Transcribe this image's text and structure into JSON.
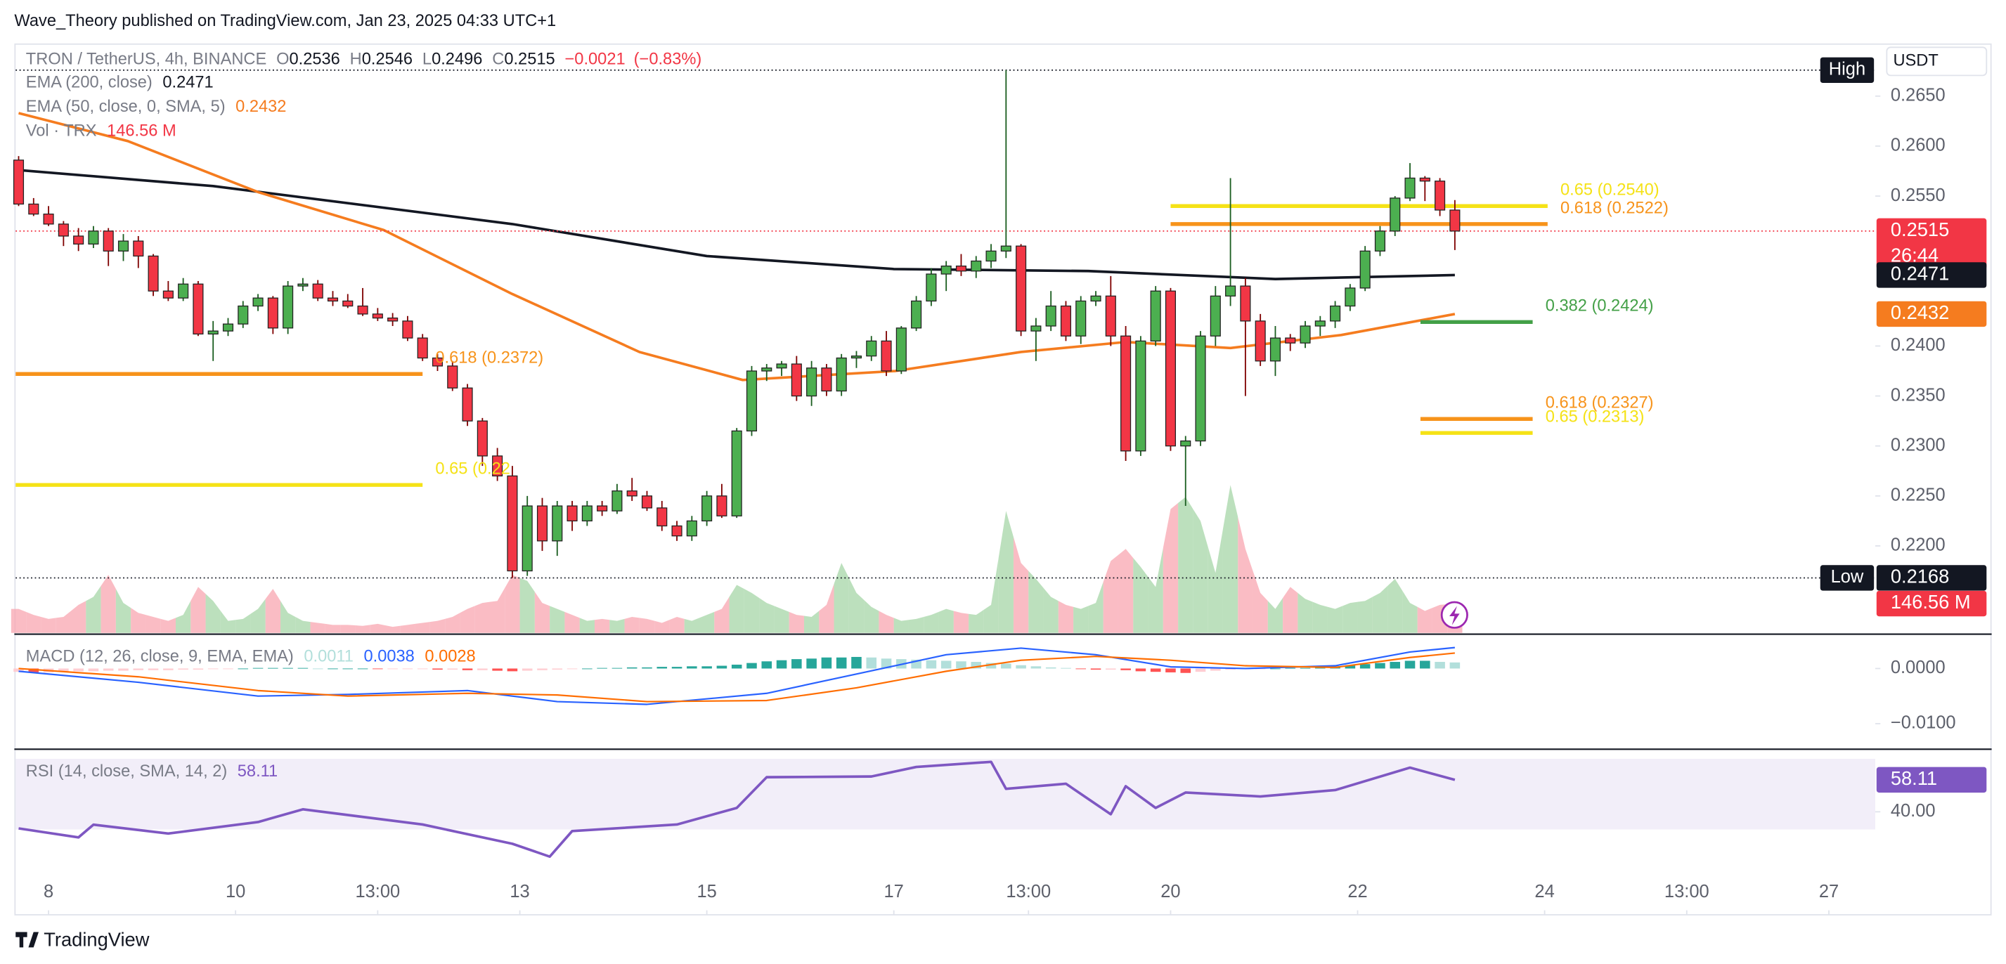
{
  "header": {
    "text": "Wave_Theory published on TradingView.com, Jan 23, 2025 04:33 UTC+1"
  },
  "footer": {
    "brand": "TradingView"
  },
  "chart_data": [
    {
      "type": "candlestick",
      "title": "TRON / TetherUS, 4h, BINANCE",
      "legend_keys": [
        "O",
        "H",
        "L",
        "C"
      ],
      "change": {
        "value": -0.0021,
        "label": "−0.0021"
      },
      "change_pct": {
        "value": -0.83,
        "label": "(−0.83%)"
      },
      "currency": "USDT",
      "countdown": "26:44",
      "up_color": "#4caf50",
      "down_color": "#f23645",
      "price_line_color": "#f23645",
      "open": [
        0.2586,
        0.2542,
        0.2532,
        0.2522,
        0.251,
        0.2502,
        0.2515,
        0.2495,
        0.2505,
        0.249,
        0.2455,
        0.2448,
        0.2462,
        0.2412,
        0.2415,
        0.2422,
        0.244,
        0.2448,
        0.2418,
        0.246,
        0.2462,
        0.2448,
        0.2445,
        0.244,
        0.2432,
        0.2428,
        0.2425,
        0.2408,
        0.2388,
        0.238,
        0.2358,
        0.2325,
        0.229,
        0.227,
        0.2175,
        0.224,
        0.2205,
        0.224,
        0.2225,
        0.224,
        0.2235,
        0.2255,
        0.225,
        0.2238,
        0.222,
        0.221,
        0.2225,
        0.225,
        0.223,
        0.2315,
        0.2375,
        0.2378,
        0.2382,
        0.235,
        0.2378,
        0.2355,
        0.2388,
        0.239,
        0.2405,
        0.2375,
        0.2418,
        0.2445,
        0.2472,
        0.248,
        0.2475,
        0.2485,
        0.2495,
        0.25,
        0.2415,
        0.242,
        0.244,
        0.241,
        0.2445,
        0.245,
        0.241,
        0.2295,
        0.2405,
        0.2455,
        0.23,
        0.2305,
        0.241,
        0.245,
        0.246,
        0.2425,
        0.2385,
        0.2408,
        0.2403,
        0.242,
        0.2425,
        0.244,
        0.2458,
        0.2495,
        0.2515,
        0.2548,
        0.2568,
        0.2565,
        0.2536
      ],
      "high": [
        0.259,
        0.2548,
        0.254,
        0.2525,
        0.2518,
        0.252,
        0.2518,
        0.2512,
        0.251,
        0.2492,
        0.2465,
        0.2468,
        0.2465,
        0.2425,
        0.2428,
        0.2445,
        0.2452,
        0.245,
        0.2465,
        0.2468,
        0.2466,
        0.2455,
        0.2452,
        0.2458,
        0.2438,
        0.2433,
        0.243,
        0.2412,
        0.2392,
        0.2385,
        0.2362,
        0.2328,
        0.2298,
        0.228,
        0.225,
        0.2248,
        0.2245,
        0.2245,
        0.2245,
        0.2245,
        0.2262,
        0.2268,
        0.2255,
        0.2245,
        0.2225,
        0.223,
        0.2255,
        0.2262,
        0.2318,
        0.238,
        0.2382,
        0.2385,
        0.239,
        0.2385,
        0.2382,
        0.2392,
        0.2395,
        0.241,
        0.2415,
        0.242,
        0.245,
        0.2478,
        0.2485,
        0.2492,
        0.249,
        0.2502,
        0.2676,
        0.2502,
        0.2428,
        0.2455,
        0.2445,
        0.245,
        0.2455,
        0.247,
        0.242,
        0.241,
        0.246,
        0.2458,
        0.231,
        0.2415,
        0.246,
        0.2568,
        0.2468,
        0.2432,
        0.242,
        0.2412,
        0.2425,
        0.243,
        0.2445,
        0.2462,
        0.25,
        0.252,
        0.255,
        0.2583,
        0.257,
        0.2568,
        0.2546
      ],
      "low": [
        0.254,
        0.253,
        0.252,
        0.25,
        0.2495,
        0.2498,
        0.248,
        0.2485,
        0.2478,
        0.245,
        0.2445,
        0.2445,
        0.241,
        0.2385,
        0.241,
        0.2418,
        0.2435,
        0.2412,
        0.2412,
        0.2455,
        0.2445,
        0.244,
        0.2438,
        0.243,
        0.2425,
        0.242,
        0.2405,
        0.2385,
        0.2375,
        0.2355,
        0.232,
        0.228,
        0.2265,
        0.2168,
        0.217,
        0.2195,
        0.219,
        0.2215,
        0.222,
        0.223,
        0.2232,
        0.2245,
        0.2235,
        0.2215,
        0.2205,
        0.2205,
        0.222,
        0.2228,
        0.2228,
        0.231,
        0.2365,
        0.237,
        0.2345,
        0.234,
        0.235,
        0.235,
        0.2378,
        0.2385,
        0.237,
        0.2372,
        0.2415,
        0.244,
        0.2455,
        0.247,
        0.2468,
        0.2478,
        0.2488,
        0.241,
        0.2385,
        0.2415,
        0.2405,
        0.2402,
        0.244,
        0.24,
        0.2285,
        0.229,
        0.24,
        0.2295,
        0.224,
        0.23,
        0.24,
        0.244,
        0.235,
        0.238,
        0.237,
        0.2395,
        0.2398,
        0.241,
        0.2418,
        0.2435,
        0.2455,
        0.249,
        0.251,
        0.2545,
        0.2545,
        0.253,
        0.2496
      ],
      "close": [
        0.2542,
        0.2532,
        0.2522,
        0.251,
        0.2502,
        0.2515,
        0.2495,
        0.2505,
        0.249,
        0.2455,
        0.2448,
        0.2462,
        0.2412,
        0.2415,
        0.2422,
        0.244,
        0.2448,
        0.2418,
        0.246,
        0.2462,
        0.2448,
        0.2445,
        0.244,
        0.2432,
        0.2428,
        0.2425,
        0.2408,
        0.2388,
        0.238,
        0.2358,
        0.2325,
        0.229,
        0.227,
        0.2175,
        0.224,
        0.2205,
        0.224,
        0.2225,
        0.224,
        0.2235,
        0.2255,
        0.225,
        0.2238,
        0.222,
        0.221,
        0.2225,
        0.225,
        0.223,
        0.2315,
        0.2375,
        0.2378,
        0.2382,
        0.235,
        0.2378,
        0.2355,
        0.2388,
        0.239,
        0.2405,
        0.2375,
        0.2418,
        0.2445,
        0.2472,
        0.248,
        0.2475,
        0.2485,
        0.2495,
        0.25,
        0.2415,
        0.242,
        0.244,
        0.241,
        0.2445,
        0.245,
        0.241,
        0.2295,
        0.2405,
        0.2455,
        0.23,
        0.2305,
        0.241,
        0.245,
        0.246,
        0.2425,
        0.2385,
        0.2408,
        0.2403,
        0.242,
        0.2425,
        0.244,
        0.2458,
        0.2495,
        0.2515,
        0.2548,
        0.2568,
        0.2565,
        0.2536,
        0.2515
      ],
      "series": [
        {
          "name": "EMA (200, close)",
          "color": "#131722",
          "x": [
            0,
            13,
            33,
            46,
            58.5,
            71.5,
            84,
            96
          ],
          "values": [
            0.2576,
            0.256,
            0.2522,
            0.249,
            0.2477,
            0.2475,
            0.2467,
            0.2471
          ]
        },
        {
          "name": "EMA (50, close, 0, SMA, 5)",
          "color": "#f57c1f",
          "x": [
            0,
            7.3,
            16,
            24.4,
            33,
            41.5,
            48.4,
            58.6,
            67,
            74,
            81,
            88.4,
            96
          ],
          "values": [
            0.2633,
            0.2605,
            0.2554,
            0.2516,
            0.2452,
            0.2394,
            0.2366,
            0.2375,
            0.2394,
            0.2404,
            0.2398,
            0.2411,
            0.2432
          ]
        }
      ],
      "levels": [
        {
          "label": "0.618 (0.2372)",
          "value": 0.2372,
          "color": "#f7931a",
          "x": [
            -0.2,
            27
          ]
        },
        {
          "label": "0.65 (0.22",
          "value": 0.2261,
          "color": "#f5e216",
          "x": [
            -0.2,
            27
          ]
        },
        {
          "label": "0.65 (0.2540)",
          "value": 0.254,
          "color": "#f5e216",
          "x": [
            77,
            102.2
          ]
        },
        {
          "label": "0.618 (0.2522)",
          "value": 0.2522,
          "color": "#f7931a",
          "x": [
            77,
            102.2
          ]
        },
        {
          "label": "0.382 (0.2424)",
          "value": 0.2424,
          "color": "#43a047",
          "x": [
            93.7,
            101.2
          ]
        },
        {
          "label": "0.618 (0.2327)",
          "value": 0.2327,
          "color": "#f7931a",
          "x": [
            93.7,
            101.2
          ]
        },
        {
          "label": "0.65 (0.2313)",
          "value": 0.2313,
          "color": "#f5e216",
          "x": [
            93.7,
            101.2
          ]
        }
      ],
      "high_mark": {
        "label": "High",
        "value": 0.2676
      },
      "low_mark": {
        "label": "Low",
        "value": 0.2168
      },
      "xlim": [
        -0.2,
        124.1
      ],
      "xticks": [
        {
          "value": 2,
          "label": "8"
        },
        {
          "value": 14.5,
          "label": "10"
        },
        {
          "value": 24,
          "label": "13:00"
        },
        {
          "value": 33.5,
          "label": "13"
        },
        {
          "value": 46,
          "label": "15"
        },
        {
          "value": 58.5,
          "label": "17"
        },
        {
          "value": 67.5,
          "label": "13:00"
        },
        {
          "value": 77,
          "label": "20"
        },
        {
          "value": 89.5,
          "label": "22"
        },
        {
          "value": 102,
          "label": "24"
        },
        {
          "value": 111.5,
          "label": "13:00"
        },
        {
          "value": 121,
          "label": "27"
        }
      ],
      "ylim": [
        0.2113,
        0.2695
      ],
      "yticks": [
        {
          "value": 0.265,
          "label": "0.2650"
        },
        {
          "value": 0.26,
          "label": "0.2600"
        },
        {
          "value": 0.255,
          "label": "0.2550"
        },
        {
          "value": 0.24,
          "label": "0.2400"
        },
        {
          "value": 0.235,
          "label": "0.2350"
        },
        {
          "value": 0.23,
          "label": "0.2300"
        },
        {
          "value": 0.225,
          "label": "0.2250"
        },
        {
          "value": 0.22,
          "label": "0.2200"
        }
      ],
      "grid": false
    },
    {
      "type": "area",
      "name": "Vol · TRX",
      "up_color": "#a5d6a7",
      "down_color": "#f8a5b0",
      "label_color": "#f23645",
      "values": [
        120,
        90,
        70,
        80,
        140,
        180,
        290,
        150,
        100,
        80,
        60,
        90,
        230,
        160,
        60,
        70,
        120,
        220,
        100,
        60,
        50,
        40,
        40,
        35,
        45,
        30,
        40,
        50,
        60,
        80,
        120,
        150,
        160,
        290,
        260,
        150,
        120,
        90,
        60,
        70,
        60,
        80,
        70,
        50,
        80,
        60,
        90,
        120,
        240,
        200,
        150,
        120,
        90,
        80,
        140,
        350,
        200,
        130,
        90,
        60,
        70,
        90,
        120,
        100,
        90,
        140,
        610,
        350,
        270,
        180,
        140,
        120,
        150,
        360,
        420,
        330,
        230,
        620,
        680,
        560,
        300,
        740,
        420,
        200,
        120,
        230,
        170,
        140,
        120,
        150,
        160,
        200,
        270,
        150,
        110,
        140,
        146.56
      ],
      "value_labels": [
        null,
        null,
        null,
        null,
        null,
        null,
        null,
        null,
        null,
        null,
        null,
        null,
        null,
        null,
        null,
        null,
        null,
        null,
        null,
        null,
        null,
        null,
        null,
        null,
        null,
        null,
        null,
        null,
        null,
        null,
        null,
        null,
        null,
        null,
        null,
        null,
        null,
        null,
        null,
        null,
        null,
        null,
        null,
        null,
        null,
        null,
        null,
        null,
        null,
        null,
        null,
        null,
        null,
        null,
        null,
        null,
        null,
        null,
        null,
        null,
        null,
        null,
        null,
        null,
        null,
        null,
        null,
        null,
        null,
        null,
        null,
        null,
        null,
        null,
        null,
        null,
        null,
        null,
        null,
        null,
        null,
        null,
        null,
        null,
        null,
        null,
        null,
        null,
        null,
        null,
        null,
        null,
        null,
        null,
        null,
        null,
        "146.56 M"
      ],
      "ylim": [
        0,
        800
      ]
    },
    {
      "type": "macd",
      "title": "MACD (12, 26, close, 9, EMA, EMA)",
      "histogram": {
        "colors": [
          "#26a69a",
          "#b2dfdb",
          "#ff5252",
          "#ffcdd2"
        ],
        "values": [
          -0.0006,
          -0.0007,
          -0.0007,
          -0.0006,
          -0.0005,
          -0.0005,
          -0.0004,
          -0.0004,
          -0.0003,
          -0.0003,
          -0.0003,
          -0.0002,
          -0.0002,
          -0.0001,
          -0.0001,
          0,
          0.0001,
          0.0001,
          0.0001,
          0.0001,
          0,
          0,
          0,
          0,
          -0.0001,
          -0.0001,
          -0.0001,
          -0.0001,
          -0.0002,
          -0.0002,
          -0.0003,
          -0.0003,
          -0.0004,
          -0.0005,
          -0.0004,
          -0.0003,
          -0.0002,
          -0.0001,
          0,
          0.0001,
          0.0001,
          0.0002,
          0.0002,
          0.0003,
          0.0003,
          0.0004,
          0.0004,
          0.0005,
          0.0007,
          0.001,
          0.0013,
          0.0015,
          0.0017,
          0.0018,
          0.002,
          0.002,
          0.0021,
          0.002,
          0.0018,
          0.0017,
          0.0016,
          0.0015,
          0.0014,
          0.0013,
          0.0012,
          0.001,
          0.0009,
          0.0006,
          0.0004,
          0.0002,
          0.0001,
          -0.0001,
          -0.0002,
          -0.0002,
          -0.0003,
          -0.0005,
          -0.0006,
          -0.0007,
          -0.0008,
          -0.0006,
          -0.0004,
          -0.0002,
          -0.0001,
          -0.0001,
          0,
          0.0001,
          0.0001,
          0.0002,
          0.0004,
          0.0006,
          0.0008,
          0.001,
          0.0012,
          0.0014,
          0.0014,
          0.0012,
          0.0011
        ]
      },
      "series": [
        {
          "color": "#2962ff",
          "x": [
            0,
            8,
            16,
            22,
            30,
            36,
            42,
            50,
            56,
            62,
            67,
            72,
            77,
            82,
            88,
            93,
            96
          ],
          "values": [
            -0.0005,
            -0.0025,
            -0.005,
            -0.0047,
            -0.004,
            -0.006,
            -0.0065,
            -0.0045,
            -0.001,
            0.0025,
            0.0037,
            0.0025,
            0.0003,
            0,
            0.0005,
            0.003,
            0.0038
          ]
        },
        {
          "color": "#ff6d00",
          "x": [
            0,
            8,
            16,
            22,
            30,
            36,
            42,
            50,
            56,
            62,
            67,
            72,
            77,
            82,
            88,
            93,
            96
          ],
          "values": [
            0,
            -0.0015,
            -0.004,
            -0.005,
            -0.0045,
            -0.0048,
            -0.006,
            -0.0058,
            -0.0035,
            -0.0005,
            0.0015,
            0.0022,
            0.0015,
            0.0005,
            0.0002,
            0.002,
            0.0028
          ]
        }
      ],
      "ylim": [
        -0.0144,
        0.006
      ],
      "yticks": [
        {
          "value": 0,
          "label": "0.0000"
        },
        {
          "value": -0.01,
          "label": "−0.0100"
        }
      ]
    },
    {
      "type": "line",
      "title": "RSI (14, close, SMA, 14, 2)",
      "series": [
        {
          "color": "#7e57c2",
          "x": [
            0,
            4,
            5,
            10,
            16,
            19,
            27,
            33,
            35.5,
            37,
            44,
            48,
            50,
            57,
            60,
            65,
            66,
            70,
            73,
            74,
            76,
            78,
            83,
            88,
            93,
            96
          ],
          "values": [
            30.6,
            25.5,
            32.7,
            27.7,
            34.2,
            41.4,
            32.8,
            21.9,
            14.6,
            29.1,
            32.8,
            42.2,
            59.6,
            60,
            65.4,
            68.3,
            53,
            55.9,
            38.6,
            54.5,
            42.2,
            50.9,
            48.7,
            52.3,
            65,
            58.11
          ]
        }
      ],
      "band": [
        30,
        70
      ],
      "band_color": "#ede7f6",
      "ylim": [
        -15.8,
        74
      ],
      "yticks": [
        {
          "value": 40,
          "label": "40.00"
        }
      ]
    }
  ]
}
